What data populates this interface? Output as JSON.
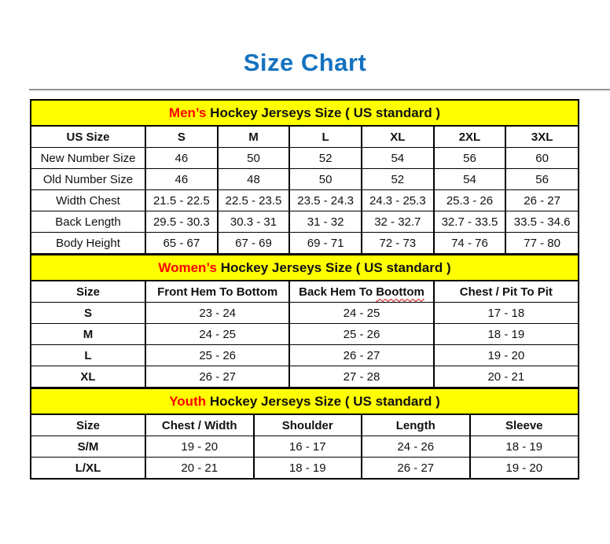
{
  "page": {
    "title": "Size Chart"
  },
  "colors": {
    "title_blue": "#1572BF",
    "accent_red": "#FF0000",
    "band_yellow": "#FFFF00",
    "divider_gray": "#929292",
    "squiggle_red": "#C00000"
  },
  "sections": [
    {
      "id": "men",
      "heading": {
        "highlight": "Men’s",
        "rest": " Hockey Jerseys Size ( US standard )"
      },
      "columns": [
        "US Size",
        "S",
        "M",
        "L",
        "XL",
        "2XL",
        "3XL"
      ],
      "label_bold": false,
      "rows": [
        {
          "label": "New Number Size",
          "values": [
            "46",
            "50",
            "52",
            "54",
            "56",
            "60"
          ]
        },
        {
          "label": "Old Number Size",
          "values": [
            "46",
            "48",
            "50",
            "52",
            "54",
            "56"
          ]
        },
        {
          "label": "Width Chest",
          "values": [
            "21.5 - 22.5",
            "22.5 - 23.5",
            "23.5 - 24.3",
            "24.3 - 25.3",
            "25.3 - 26",
            "26 - 27"
          ]
        },
        {
          "label": "Back Length",
          "values": [
            "29.5 - 30.3",
            "30.3 - 31",
            "31 - 32",
            "32 - 32.7",
            "32.7 - 33.5",
            "33.5 - 34.6"
          ]
        },
        {
          "label": "Body Height",
          "values": [
            "65 - 67",
            "67 - 69",
            "69 - 71",
            "72 - 73",
            "74 - 76",
            "77 - 80"
          ]
        }
      ]
    },
    {
      "id": "women",
      "heading": {
        "highlight": "Women’s",
        "rest": " Hockey Jerseys Size ( US standard )"
      },
      "columns": [
        "Size",
        "Front Hem To Bottom",
        "Back Hem To Boottom",
        "Chest / Pit To Pit"
      ],
      "wavy_column_index": 2,
      "wavy_word": "Boottom",
      "label_bold": true,
      "rows": [
        {
          "label": "S",
          "values": [
            "23 - 24",
            "24 - 25",
            "17 - 18"
          ]
        },
        {
          "label": "M",
          "values": [
            "24 - 25",
            "25 - 26",
            "18 - 19"
          ]
        },
        {
          "label": "L",
          "values": [
            "25 - 26",
            "26 - 27",
            "19 - 20"
          ]
        },
        {
          "label": "XL",
          "values": [
            "26 - 27",
            "27 - 28",
            "20 - 21"
          ]
        }
      ]
    },
    {
      "id": "youth",
      "heading": {
        "highlight": "Youth",
        "rest": " Hockey Jerseys Size ( US standard )"
      },
      "columns": [
        "Size",
        "Chest / Width",
        "Shoulder",
        "Length",
        "Sleeve"
      ],
      "label_bold": true,
      "rows": [
        {
          "label": "S/M",
          "values": [
            "19 - 20",
            "16 - 17",
            "24 - 26",
            "18 - 19"
          ]
        },
        {
          "label": "L/XL",
          "values": [
            "20 - 21",
            "18 - 19",
            "26 - 27",
            "19 - 20"
          ]
        }
      ]
    }
  ]
}
